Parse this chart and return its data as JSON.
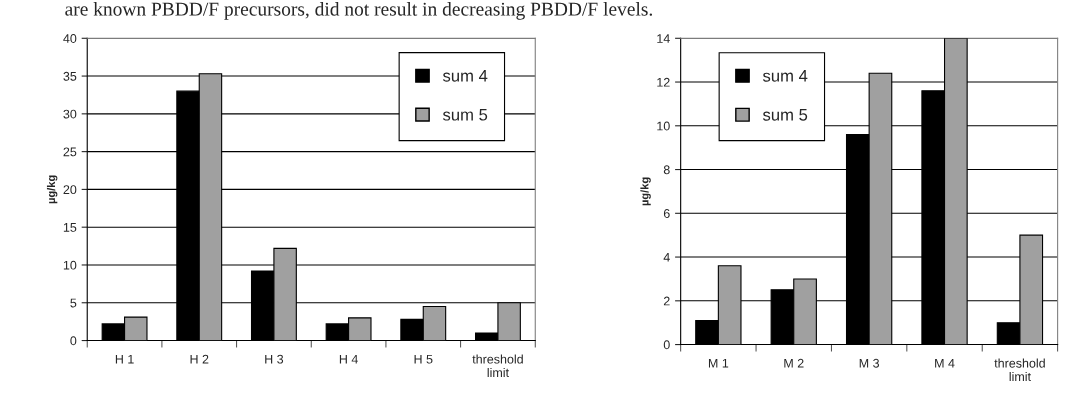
{
  "chart_data": [
    {
      "type": "bar",
      "annotations": [
        "are known PBDD/F precursors, did not result in decreasing PBDD/F levels."
      ],
      "ylabel": "µg/kg",
      "categories": [
        "H 1",
        "H 2",
        "H 3",
        "H 4",
        "H 5",
        "threshold\nlimit"
      ],
      "series": [
        {
          "name": "sum 4",
          "color": "#000000",
          "values": [
            2.2,
            33.0,
            9.2,
            2.2,
            2.8,
            1.0
          ]
        },
        {
          "name": "sum 5",
          "color": "#a0a0a0",
          "values": [
            3.1,
            35.3,
            12.2,
            3.0,
            4.5,
            5.0
          ]
        }
      ],
      "ylim": [
        0,
        40
      ],
      "yticks": [
        0,
        5,
        10,
        15,
        20,
        25,
        30,
        35,
        40
      ],
      "grid": "y",
      "legend": "top right"
    },
    {
      "type": "bar",
      "ylabel": "µg/kg",
      "categories": [
        "M 1",
        "M 2",
        "M 3",
        "M 4",
        "threshold\nlimit"
      ],
      "series": [
        {
          "name": "sum 4",
          "color": "#000000",
          "values": [
            1.1,
            2.5,
            9.6,
            11.6,
            1.0
          ]
        },
        {
          "name": "sum 5",
          "color": "#a0a0a0",
          "values": [
            3.6,
            3.0,
            12.4,
            14.0,
            5.0
          ]
        }
      ],
      "ylim": [
        0,
        14
      ],
      "yticks": [
        0,
        2,
        4,
        6,
        8,
        10,
        12,
        14
      ],
      "grid": "y",
      "legend": "top left"
    }
  ]
}
